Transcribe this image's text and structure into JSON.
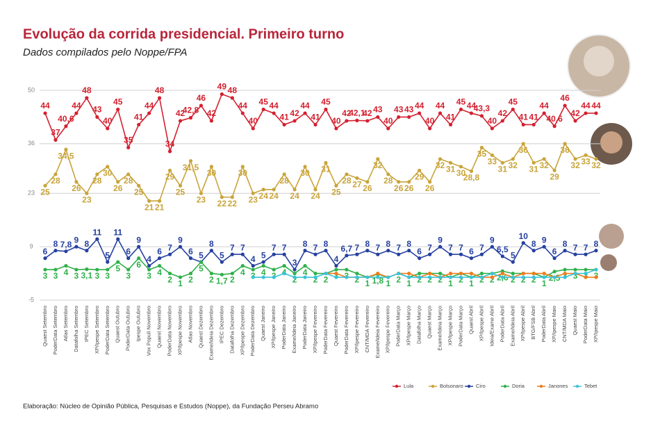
{
  "chart_data": {
    "type": "line",
    "title": "Evolução da corrida presidencial. Primeiro turno",
    "subtitle": "Dados compilados pelo Noppe/FPA",
    "footnote": "Elaboração: Núcleo de Opinião Pública, Pesquisas e Estudos (Noppe), da Fundação Perseu Abramo",
    "categories": [
      "Quaest Setembro",
      "PoderData Setembro",
      "Atlas Setembro",
      "Datafolha Setembro",
      "IPEC Setembro",
      "XP/Ipespe Setembro",
      "PoderData Setembro",
      "Quaest Outubro",
      "PoderData Outubro",
      "Ipespe Outubro",
      "Vox Populi Novembro",
      "Quaest Novembro",
      "PoderData Novembro",
      "XP/Ipespe Novembro",
      "Atlas Novembro",
      "Quaest Dezembro",
      "Exame/Ideia Dezembro",
      "IPEC Dezembro",
      "Datafolha Dezembro",
      "XP/Ipespe Dezembro",
      "PoderData Dezembro",
      "Quaest Janeiro",
      "XP/Ipespe Janeiro",
      "PoderData Janeiro",
      "Exame/Ideia Janeiro",
      "PoderData Janeiro",
      "XP/Ipespe Fevereiro",
      "PoderData Fevereiro",
      "Quaest Fevereiro",
      "PoderData Fevereiro",
      "XP/Ipespe Fevereiro",
      "CNT/MDA Fevereiro",
      "Exame/Ideia Fevereiro",
      "XP/Ipespe Fevereiro",
      "PoderData Março",
      "XP/Ipespe Março",
      "Datafolha Março",
      "Quaest Março",
      "Exame/Ideia Março",
      "XP/Ipespe Março",
      "PoderData Março",
      "Quaest Abril",
      "XP/Ipespe Abril",
      "Ideia/Exame Abril",
      "PoderData Abril",
      "Exame/Ideia Abril",
      "XP/Ipespe Abril",
      "BTG/FSB Abril",
      "PoderData Abril",
      "XP/Ipespe Maio",
      "CNT/MDA Maio",
      "Quaest Maio",
      "PoderData Maio",
      "XP/Ipespe Maio"
    ],
    "ylim": [
      -5,
      50
    ],
    "yticks": [
      -5,
      9,
      23,
      36,
      50
    ],
    "grid": true,
    "series": [
      {
        "name": "Lula",
        "color": "#d4202f",
        "label_offset": -10,
        "values": [
          44,
          37,
          40.6,
          44,
          48,
          43,
          40,
          45,
          35,
          41,
          44,
          48,
          34,
          42,
          42.8,
          46,
          42,
          49,
          48,
          44,
          40,
          45,
          44,
          41,
          42,
          44,
          41,
          45,
          40,
          42,
          42.1,
          42,
          43,
          40,
          43,
          43,
          44,
          40,
          44,
          41,
          45,
          44,
          43.3,
          40,
          42,
          45,
          41,
          41,
          44,
          40.6,
          46,
          42,
          44,
          44
        ],
        "value_labels": [
          "44",
          "37",
          "40,6",
          "44",
          "48",
          "43",
          "40",
          "45",
          "35",
          "41",
          "44",
          "48",
          "34",
          "42",
          "42,8",
          "46",
          "42",
          "49",
          "48",
          "44",
          "40",
          "45",
          "44",
          "41",
          "42",
          "44",
          "41",
          "45",
          "40",
          "42",
          "42,1",
          "42",
          "43",
          "40",
          "43",
          "43",
          "44",
          "40",
          "44",
          "41",
          "45",
          "44",
          "43,3",
          "40",
          "42",
          "45",
          "41",
          "41",
          "44",
          "40,6",
          "46",
          "42",
          "44",
          "44"
        ]
      },
      {
        "name": "Bolsonaro",
        "color": "#c9a43a",
        "label_offset": 10,
        "values": [
          25,
          28,
          34.5,
          26,
          23,
          28,
          30,
          26,
          28,
          25,
          21,
          21,
          29,
          25,
          31.5,
          23,
          30,
          22,
          22,
          30,
          23,
          24,
          24,
          28,
          24,
          30,
          24,
          31,
          25,
          28,
          27,
          26,
          32,
          28,
          26,
          26,
          29,
          26,
          32,
          31,
          30,
          28.8,
          35,
          33,
          31,
          32,
          36,
          31,
          32,
          29,
          36,
          32,
          33,
          32
        ],
        "value_labels": [
          "25",
          "28",
          "34,5",
          "26",
          "23",
          "28",
          "30",
          "26",
          "28",
          "25",
          "21",
          "21",
          "29",
          "25",
          "31,5",
          "23",
          "30",
          "22",
          "22",
          "30",
          "23",
          "24",
          "24",
          "28",
          "24",
          "30",
          "24",
          "31",
          "25",
          "28",
          "27",
          "26",
          "32",
          "28",
          "26",
          "26",
          "29",
          "26",
          "32",
          "31",
          "30",
          "28,8",
          "35",
          "33",
          "31",
          "32",
          "36",
          "31",
          "32",
          "29",
          "36",
          "32",
          "33",
          "32"
        ]
      },
      {
        "name": "Ciro",
        "color": "#2540a0",
        "label_offset": -9,
        "values": [
          6,
          8,
          7.8,
          9,
          8,
          11,
          5,
          11,
          6,
          9,
          4,
          6,
          7,
          9,
          6,
          5,
          8,
          5,
          7,
          7,
          4,
          5,
          7,
          7,
          3,
          8,
          7,
          8,
          4,
          6.7,
          7,
          8,
          7,
          8,
          7,
          8,
          6,
          7,
          9,
          7,
          7,
          6,
          7,
          9,
          6.5,
          5,
          10,
          8,
          9,
          6,
          8,
          7,
          7,
          8
        ],
        "value_labels": [
          "6",
          "8",
          "7,8",
          "9",
          "8",
          "11",
          "5",
          "11",
          "6",
          "9",
          "4",
          "6",
          "7",
          "9",
          "6",
          "5",
          "8",
          "5",
          "7",
          "7",
          "4",
          "5",
          "7",
          "7",
          "3",
          "8",
          "7",
          "8",
          "4",
          "6,7",
          "7",
          "8",
          "7",
          "8",
          "7",
          "8",
          "6",
          "7",
          "9",
          "7",
          "7",
          "6",
          "7",
          "9",
          "6,5",
          "5",
          "10",
          "8",
          "9",
          "6",
          "8",
          "7",
          "7",
          "8"
        ]
      },
      {
        "name": "Doria",
        "color": "#2fb04a",
        "label_offset": 10,
        "values": [
          3,
          3,
          4,
          3,
          3.1,
          3,
          3,
          5,
          3,
          6,
          3,
          4,
          2,
          1,
          2,
          5,
          2,
          1.7,
          2,
          4,
          3,
          4,
          3,
          4,
          2,
          4,
          2,
          2,
          3,
          3,
          2,
          1,
          1.8,
          1,
          2,
          1,
          2,
          2,
          2,
          1,
          2,
          1,
          2,
          2,
          2.6,
          2,
          2,
          2,
          1,
          2.5,
          3,
          3,
          3,
          3
        ],
        "value_labels": [
          "3",
          "3",
          "4",
          "3",
          "3,1",
          "3",
          "3",
          "5",
          "3",
          "6",
          "3",
          "4",
          "2",
          "1",
          "2",
          "5",
          "2",
          "1,7",
          "2",
          "4",
          "3",
          "4",
          "3",
          "4",
          "2",
          "4",
          "2",
          "2",
          "3",
          "3",
          "2",
          "1",
          "1,8",
          "1",
          "2",
          "1",
          "2",
          "2",
          "2",
          "1",
          "2",
          "1",
          "2",
          "2",
          "2,6",
          "2",
          "2",
          "2",
          "1",
          "2,5",
          "3",
          "3",
          "3",
          "3"
        ]
      },
      {
        "name": "Janones",
        "color": "#f07c1c",
        "values": [
          null,
          null,
          null,
          null,
          null,
          null,
          null,
          null,
          null,
          null,
          null,
          null,
          null,
          null,
          null,
          null,
          null,
          null,
          null,
          null,
          null,
          null,
          null,
          null,
          null,
          null,
          null,
          2,
          2,
          1,
          1,
          1,
          2,
          1,
          2,
          2,
          1,
          2,
          1,
          2,
          2,
          2,
          1,
          1,
          2,
          1,
          2,
          2,
          2,
          1,
          2,
          2,
          1,
          1
        ]
      },
      {
        "name": "Tebet",
        "color": "#3bc3d8",
        "values": [
          null,
          null,
          null,
          null,
          null,
          null,
          null,
          null,
          null,
          null,
          null,
          null,
          null,
          null,
          null,
          null,
          null,
          null,
          null,
          null,
          1,
          1,
          1,
          2,
          1,
          1,
          1,
          2,
          1,
          1,
          1,
          1,
          1,
          1,
          2,
          1,
          1,
          1,
          1,
          1,
          1,
          1,
          1,
          2,
          1,
          1,
          1,
          1,
          1,
          1,
          1,
          2,
          2,
          3
        ]
      }
    ]
  }
}
